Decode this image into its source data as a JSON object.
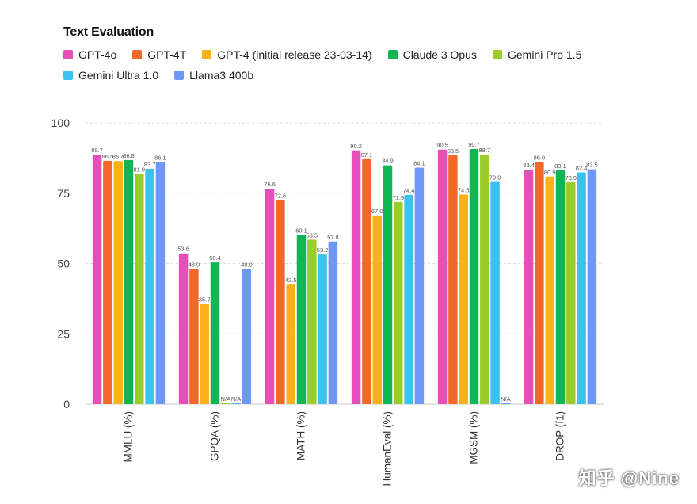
{
  "chart_data": {
    "type": "bar",
    "title": "Text Evaluation",
    "categories": [
      "MMLU (%)",
      "GPQA (%)",
      "MATH (%)",
      "HumanEval (%)",
      "MGSM (%)",
      "DROP (f1)"
    ],
    "ylim": [
      0,
      100
    ],
    "yticks": [
      "0",
      "25",
      "50",
      "75",
      "100"
    ],
    "grid": true,
    "series": [
      {
        "name": "GPT-4o",
        "color": "#e64fb7",
        "values": [
          88.7,
          53.6,
          76.6,
          90.2,
          90.5,
          83.4
        ],
        "labels": [
          "88.7",
          "53.6",
          "76.6",
          "90.2",
          "90.5",
          "83.4"
        ]
      },
      {
        "name": "GPT-4T",
        "color": "#f0692a",
        "values": [
          86.5,
          48.0,
          72.6,
          87.1,
          88.5,
          86.0
        ],
        "labels": [
          "86.5",
          "48.0",
          "72.6",
          "87.1",
          "88.5",
          "86.0"
        ]
      },
      {
        "name": "GPT-4 (initial release 23-03-14)",
        "color": "#fbb117",
        "values": [
          86.4,
          35.7,
          42.5,
          67.0,
          74.5,
          80.9
        ],
        "labels": [
          "86.4",
          "35.7",
          "42.5",
          "67.0",
          "74.5",
          "80.9"
        ]
      },
      {
        "name": "Claude 3 Opus",
        "color": "#12b553",
        "values": [
          86.8,
          50.4,
          60.1,
          84.9,
          90.7,
          83.1
        ],
        "labels": [
          "86.8",
          "50.4",
          "60.1",
          "84.9",
          "90.7",
          "83.1"
        ]
      },
      {
        "name": "Gemini Pro 1.5",
        "color": "#9acd2a",
        "values": [
          81.9,
          null,
          58.5,
          71.9,
          88.7,
          78.9
        ],
        "labels": [
          "81.9",
          "N/A",
          "58.5",
          "71.9",
          "88.7",
          "78.9"
        ]
      },
      {
        "name": "Gemini Ultra 1.0",
        "color": "#3cc2ef",
        "values": [
          83.7,
          null,
          53.2,
          74.4,
          79.0,
          82.4
        ],
        "labels": [
          "83.7",
          "N/A",
          "53.2",
          "74.4",
          "79.0",
          "82.4"
        ]
      },
      {
        "name": "Llama3 400b",
        "color": "#6e98f4",
        "values": [
          86.1,
          48.0,
          57.8,
          84.1,
          null,
          83.5
        ],
        "labels": [
          "86.1",
          "48.0",
          "57.8",
          "84.1",
          "N/A",
          "83.5"
        ]
      }
    ]
  },
  "watermark": "知乎 @Nine"
}
